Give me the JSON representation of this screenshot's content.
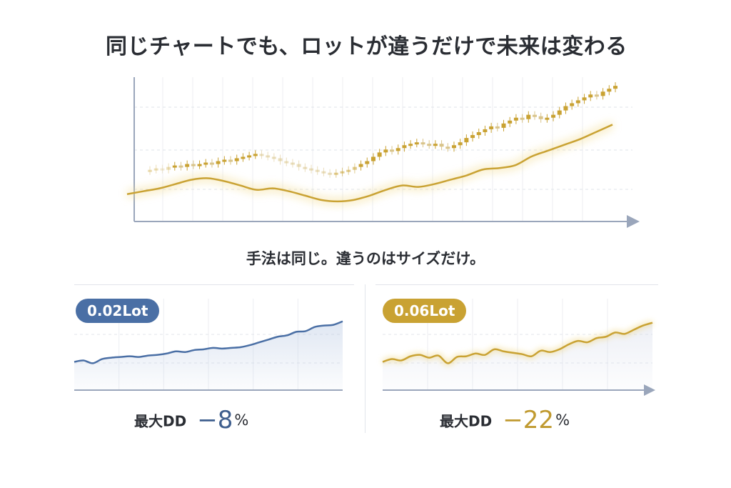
{
  "title": "同じチャートでも、ロットが違うだけで未来は変わる",
  "subtitle": "手法は同じ。違うのはサイズだけ。",
  "colors": {
    "gold": "#c9a233",
    "blue": "#4a6fa5",
    "axis": "#9aa6bb"
  },
  "chart_data": [
    {
      "type": "line",
      "title": "同じチャート",
      "candle_closes": [
        12,
        13,
        12,
        14,
        15,
        14,
        16,
        15,
        16,
        17,
        16,
        18,
        19,
        18,
        20,
        21,
        22,
        23,
        22,
        21,
        20,
        18,
        17,
        16,
        14,
        13,
        12,
        11,
        10,
        9,
        10,
        11,
        12,
        14,
        16,
        18,
        21,
        24,
        26,
        25,
        27,
        29,
        30,
        31,
        30,
        29,
        30,
        28,
        27,
        29,
        31,
        34,
        36,
        38,
        40,
        42,
        41,
        44,
        46,
        48,
        47,
        50,
        49,
        47,
        48,
        50,
        53,
        56,
        58,
        60,
        62,
        64,
        63,
        66,
        68,
        70
      ],
      "ma_line": [
        10,
        12,
        14,
        17,
        20,
        21,
        19,
        16,
        13,
        14,
        12,
        9,
        6,
        5,
        6,
        9,
        13,
        16,
        15,
        17,
        20,
        23,
        27,
        28,
        30,
        36,
        40,
        44,
        48,
        53,
        58
      ],
      "ylim": [
        0,
        75
      ]
    },
    {
      "type": "area",
      "series_name": "0.02Lot",
      "values": [
        20,
        22,
        18,
        24,
        26,
        27,
        28,
        27,
        29,
        30,
        32,
        35,
        34,
        37,
        38,
        40,
        39,
        40,
        41,
        44,
        48,
        52,
        56,
        58,
        63,
        64,
        70,
        72,
        73,
        78
      ],
      "ylim": [
        0,
        90
      ],
      "badge": "0.02Lot",
      "dd_label": "最大DD",
      "dd_value": "−8",
      "dd_unit": "%"
    },
    {
      "type": "area",
      "series_name": "0.06Lot",
      "values": [
        20,
        24,
        22,
        28,
        30,
        26,
        29,
        18,
        27,
        28,
        32,
        30,
        38,
        35,
        33,
        31,
        28,
        36,
        34,
        38,
        45,
        50,
        48,
        54,
        56,
        62,
        60,
        66,
        72,
        76
      ],
      "ylim": [
        0,
        90
      ],
      "badge": "0.06Lot",
      "dd_label": "最大DD",
      "dd_value": "−22",
      "dd_unit": "%"
    }
  ]
}
